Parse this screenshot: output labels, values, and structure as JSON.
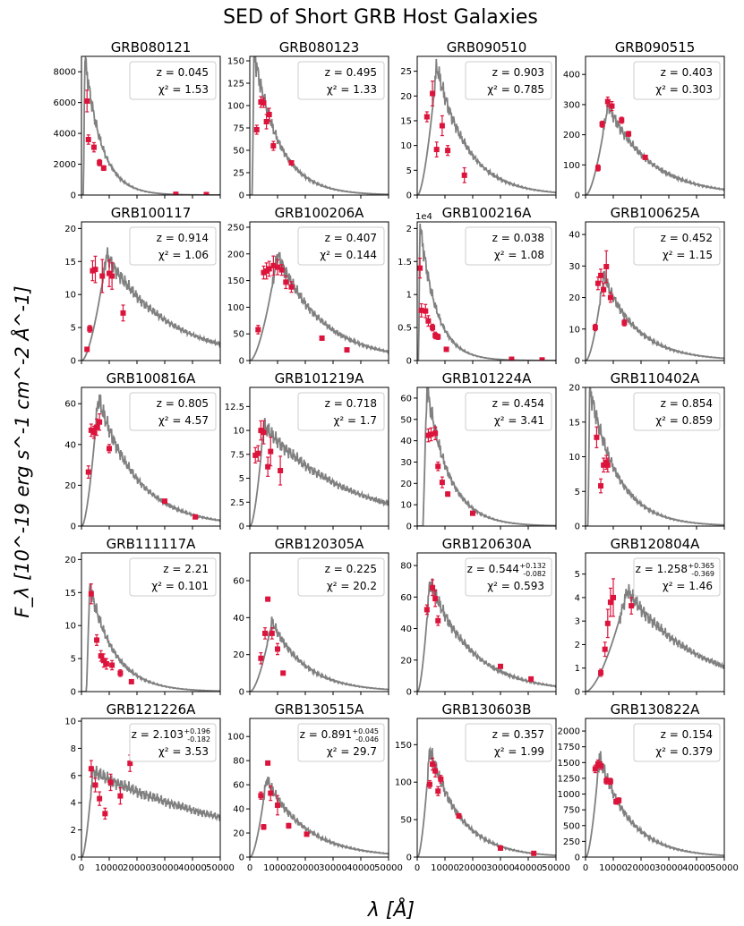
{
  "figure": {
    "title": "SED of Short GRB Host Galaxies",
    "ylabel": "F_λ [10^-19 erg s^-1 cm^-2 Å^-1]",
    "xlabel": "λ [Å]"
  },
  "colors": {
    "model": "#808080",
    "points": "#dc143c",
    "axis": "#000000",
    "legend_edge": "#cccccc"
  },
  "chart_data": [
    {
      "type": "line",
      "title": "GRB080121",
      "z": "0.045",
      "chi2": "1.53",
      "ylim": [
        0,
        9000
      ],
      "yticks": [
        0,
        2000,
        4000,
        6000,
        8000
      ],
      "xlim": [
        0,
        50000
      ],
      "xticks": [],
      "model": {
        "peak": 9000,
        "peak_x": 1200,
        "shape": "decay",
        "decay": 6000
      },
      "points": [
        [
          2000,
          6100,
          700
        ],
        [
          2500,
          3600,
          300
        ],
        [
          4500,
          3100,
          300
        ],
        [
          6500,
          2100,
          200
        ],
        [
          8000,
          1750,
          150
        ],
        [
          34000,
          50,
          0
        ],
        [
          45000,
          30,
          0
        ]
      ]
    },
    {
      "type": "line",
      "title": "GRB080123",
      "z": "0.495",
      "chi2": "1.33",
      "ylim": [
        0,
        155
      ],
      "yticks": [
        0,
        25,
        50,
        75,
        100,
        125,
        150
      ],
      "xlim": [
        0,
        50000
      ],
      "xticks": [],
      "model": {
        "peak": 160,
        "peak_x": 1500,
        "shape": "decay",
        "decay": 9000
      },
      "points": [
        [
          2500,
          73,
          5
        ],
        [
          4000,
          104,
          6
        ],
        [
          5000,
          103,
          5
        ],
        [
          6000,
          82,
          8
        ],
        [
          7000,
          90,
          7
        ],
        [
          8500,
          55,
          5
        ],
        [
          15000,
          36,
          2
        ]
      ]
    },
    {
      "type": "line",
      "title": "GRB090510",
      "z": "0.903",
      "chi2": "0.785",
      "ylim": [
        0,
        28
      ],
      "yticks": [
        0,
        5,
        10,
        15,
        20,
        25
      ],
      "xlim": [
        0,
        50000
      ],
      "xticks": [],
      "model": {
        "peak": 26,
        "peak_x": 7000,
        "shape": "bump",
        "rise": 4000,
        "decay": 11000
      },
      "points": [
        [
          3500,
          15.8,
          1.0
        ],
        [
          5500,
          20.5,
          2.5
        ],
        [
          7000,
          9.2,
          1.5
        ],
        [
          9000,
          14,
          2
        ],
        [
          11000,
          9,
          1
        ],
        [
          17000,
          4,
          1.5
        ]
      ]
    },
    {
      "type": "line",
      "title": "GRB090515",
      "z": "0.403",
      "chi2": "0.303",
      "ylim": [
        0,
        460
      ],
      "yticks": [
        0,
        100,
        200,
        300,
        400
      ],
      "xlim": [
        0,
        50000
      ],
      "xticks": [],
      "model": {
        "peak": 300,
        "peak_x": 8000,
        "shape": "bump",
        "rise": 5000,
        "decay": 15000
      },
      "points": [
        [
          4500,
          90,
          10
        ],
        [
          6000,
          235,
          10
        ],
        [
          8000,
          310,
          15
        ],
        [
          9500,
          295,
          15
        ],
        [
          13000,
          248,
          10
        ],
        [
          15500,
          203,
          8
        ],
        [
          21500,
          125,
          5
        ]
      ]
    },
    {
      "type": "line",
      "title": "GRB100117",
      "z": "0.914",
      "chi2": "1.06",
      "ylim": [
        0,
        21
      ],
      "yticks": [
        0,
        5,
        10,
        15,
        20
      ],
      "xlim": [
        0,
        50000
      ],
      "xticks": [],
      "model": {
        "peak": 16,
        "peak_x": 9000,
        "shape": "bump",
        "rise": 4000,
        "decay": 22000
      },
      "points": [
        [
          2000,
          1.7,
          0.3
        ],
        [
          3000,
          4.8,
          0.5
        ],
        [
          4000,
          13.6,
          1.5
        ],
        [
          5000,
          13.8,
          2
        ],
        [
          7500,
          12.8,
          2.5
        ],
        [
          10000,
          13.2,
          2
        ],
        [
          11000,
          12.8,
          2
        ],
        [
          15000,
          7.2,
          1.2
        ]
      ]
    },
    {
      "type": "line",
      "title": "GRB100206A",
      "z": "0.407",
      "chi2": "0.144",
      "ylim": [
        0,
        260
      ],
      "yticks": [
        0,
        50,
        100,
        150,
        200,
        250
      ],
      "xlim": [
        0,
        50000
      ],
      "xticks": [],
      "model": {
        "peak": 200,
        "peak_x": 10000,
        "shape": "bump",
        "rise": 6000,
        "decay": 16000
      },
      "points": [
        [
          3000,
          58,
          8
        ],
        [
          5000,
          165,
          12
        ],
        [
          6000,
          168,
          15
        ],
        [
          7000,
          172,
          14
        ],
        [
          8500,
          178,
          18
        ],
        [
          10000,
          175,
          14
        ],
        [
          11500,
          170,
          10
        ],
        [
          13000,
          147,
          12
        ],
        [
          15000,
          138,
          10
        ],
        [
          26000,
          42,
          3
        ],
        [
          35000,
          20,
          2
        ]
      ]
    },
    {
      "type": "line",
      "title": "GRB100216A",
      "z": "0.038",
      "chi2": "1.08",
      "ylim": [
        0,
        2.1
      ],
      "yticks": [
        0,
        0.5,
        1.0,
        1.5,
        2.0
      ],
      "offset": "1e4",
      "xlim": [
        0,
        50000
      ],
      "xticks": [],
      "model": {
        "peak": 2.1,
        "peak_x": 900,
        "shape": "decay",
        "decay": 6000
      },
      "points": [
        [
          1000,
          1.4,
          0.15
        ],
        [
          1500,
          0.76,
          0.1
        ],
        [
          3000,
          0.75,
          0.1
        ],
        [
          4000,
          0.6,
          0.08
        ],
        [
          5500,
          0.5,
          0.05
        ],
        [
          6500,
          0.38,
          0.05
        ],
        [
          7500,
          0.36,
          0.04
        ],
        [
          10500,
          0.17,
          0.02
        ],
        [
          34000,
          0.02,
          0
        ],
        [
          45000,
          0.01,
          0
        ]
      ]
    },
    {
      "type": "line",
      "title": "GRB100625A",
      "z": "0.452",
      "chi2": "1.15",
      "ylim": [
        0,
        44
      ],
      "yticks": [
        0,
        10,
        20,
        30,
        40
      ],
      "xlim": [
        0,
        50000
      ],
      "xticks": [],
      "model": {
        "peak": 27,
        "peak_x": 6500,
        "shape": "bump",
        "rise": 4000,
        "decay": 12000
      },
      "points": [
        [
          3500,
          10.5,
          1
        ],
        [
          4500,
          24.5,
          2
        ],
        [
          5500,
          27,
          2
        ],
        [
          6500,
          22.5,
          2
        ],
        [
          7500,
          29.8,
          5
        ],
        [
          9000,
          20,
          1.5
        ],
        [
          14000,
          12,
          1
        ]
      ]
    },
    {
      "type": "line",
      "title": "GRB100816A",
      "z": "0.805",
      "chi2": "4.57",
      "ylim": [
        0,
        68
      ],
      "yticks": [
        0,
        20,
        40,
        60
      ],
      "xlim": [
        0,
        50000
      ],
      "xticks": [],
      "model": {
        "peak": 63,
        "peak_x": 6000,
        "shape": "bump",
        "rise": 3000,
        "decay": 14000
      },
      "points": [
        [
          2500,
          26.5,
          3
        ],
        [
          3500,
          47,
          3
        ],
        [
          4500,
          46,
          3
        ],
        [
          5500,
          48.5,
          4
        ],
        [
          6500,
          51,
          4
        ],
        [
          10000,
          38,
          2
        ],
        [
          30000,
          12.2,
          1
        ],
        [
          41000,
          4.5,
          0.8
        ]
      ]
    },
    {
      "type": "line",
      "title": "GRB101219A",
      "z": "0.718",
      "chi2": "1.7",
      "ylim": [
        0,
        14.5
      ],
      "yticks": [
        0,
        2.5,
        5.0,
        7.5,
        10.0,
        12.5
      ],
      "xlim": [
        0,
        50000
      ],
      "xticks": [],
      "model": {
        "peak": 10.5,
        "peak_x": 5000,
        "shape": "bump",
        "rise": 3000,
        "decay": 30000
      },
      "points": [
        [
          2000,
          7.4,
          0.8
        ],
        [
          3000,
          7.6,
          0.8
        ],
        [
          4000,
          10,
          1
        ],
        [
          5000,
          9.8,
          1.2
        ],
        [
          6500,
          6.2,
          1
        ],
        [
          7500,
          7.8,
          1.5
        ],
        [
          11000,
          5.8,
          1.5
        ]
      ]
    },
    {
      "type": "line",
      "title": "GRB101224A",
      "z": "0.454",
      "chi2": "3.41",
      "ylim": [
        0,
        65
      ],
      "yticks": [
        0,
        10,
        20,
        30,
        40,
        50,
        60
      ],
      "xlim": [
        0,
        50000
      ],
      "xticks": [],
      "model": {
        "peak": 65,
        "peak_x": 3500,
        "shape": "decay",
        "decay": 8000
      },
      "points": [
        [
          4000,
          42.5,
          3
        ],
        [
          5000,
          43,
          3
        ],
        [
          6500,
          43.5,
          3
        ],
        [
          7500,
          28,
          2
        ],
        [
          9000,
          20.5,
          2.5
        ],
        [
          11000,
          15,
          1
        ],
        [
          20000,
          6,
          0.5
        ]
      ]
    },
    {
      "type": "line",
      "title": "GRB110402A",
      "z": "0.854",
      "chi2": "0.859",
      "ylim": [
        0,
        20
      ],
      "yticks": [
        0,
        5,
        10,
        15,
        20
      ],
      "xlim": [
        0,
        50000
      ],
      "xticks": [],
      "model": {
        "peak": 20,
        "peak_x": 1500,
        "shape": "decay",
        "decay": 10000
      },
      "points": [
        [
          4000,
          12.8,
          1.5
        ],
        [
          5500,
          5.8,
          1
        ],
        [
          6500,
          8.8,
          1
        ],
        [
          7500,
          9.2,
          1
        ],
        [
          8000,
          8.8,
          1
        ]
      ]
    },
    {
      "type": "line",
      "title": "GRB111117A",
      "z": "2.21",
      "chi2": "0.101",
      "ylim": [
        0,
        21
      ],
      "yticks": [
        0,
        5,
        10,
        15,
        20
      ],
      "xlim": [
        0,
        50000
      ],
      "xticks": [],
      "model": {
        "peak": 16,
        "peak_x": 3000,
        "shape": "decay",
        "decay": 9000
      },
      "points": [
        [
          3500,
          14.8,
          1.5
        ],
        [
          5500,
          7.8,
          0.8
        ],
        [
          7000,
          5.4,
          0.8
        ],
        [
          8000,
          4.7,
          1
        ],
        [
          9000,
          4.2,
          0.8
        ],
        [
          11000,
          4,
          0.7
        ],
        [
          14000,
          2.8,
          0.5
        ],
        [
          18000,
          1.5,
          0.3
        ]
      ]
    },
    {
      "type": "line",
      "title": "GRB120305A",
      "z": "0.225",
      "chi2": "20.2",
      "ylim": [
        0,
        75
      ],
      "yticks": [
        0,
        20,
        40,
        60
      ],
      "xlim": [
        0,
        50000
      ],
      "xticks": [],
      "model": {
        "peak": 38,
        "peak_x": 8000,
        "shape": "bump",
        "rise": 5000,
        "decay": 12000
      },
      "points": [
        [
          4000,
          18,
          3
        ],
        [
          5500,
          31.5,
          3
        ],
        [
          6500,
          50,
          1
        ],
        [
          8000,
          31.5,
          3
        ],
        [
          10000,
          23,
          3
        ],
        [
          12000,
          10,
          1
        ]
      ]
    },
    {
      "type": "line",
      "title": "GRB120630A",
      "z": "0.544",
      "z_sup": "+0.132",
      "z_sub": "-0.082",
      "chi2": "0.593",
      "ylim": [
        0,
        88
      ],
      "yticks": [
        0,
        20,
        40,
        60,
        80
      ],
      "xlim": [
        0,
        50000
      ],
      "xticks": [],
      "model": {
        "peak": 70,
        "peak_x": 4500,
        "shape": "bump",
        "rise": 3000,
        "decay": 15000
      },
      "points": [
        [
          3500,
          52,
          3
        ],
        [
          5500,
          66,
          5
        ],
        [
          6500,
          59,
          5
        ],
        [
          7500,
          45,
          3
        ],
        [
          30000,
          16,
          1
        ],
        [
          41000,
          8,
          0.6
        ]
      ]
    },
    {
      "type": "line",
      "title": "GRB120804A",
      "z": "1.258",
      "z_sup": "+0.365",
      "z_sub": "-0.369",
      "chi2": "1.46",
      "ylim": [
        0,
        5.9
      ],
      "yticks": [
        0,
        1,
        2,
        3,
        4,
        5
      ],
      "xlim": [
        0,
        50000
      ],
      "xticks": [],
      "model": {
        "peak": 4.3,
        "peak_x": 15000,
        "shape": "bump",
        "rise": 8000,
        "decay": 25000
      },
      "points": [
        [
          5500,
          0.8,
          0.15
        ],
        [
          7000,
          1.8,
          0.3
        ],
        [
          8000,
          2.9,
          0.6
        ],
        [
          9000,
          3.8,
          0.6
        ],
        [
          10000,
          4,
          0.8
        ],
        [
          16500,
          3.65,
          0.35
        ]
      ]
    },
    {
      "type": "line",
      "title": "GRB121226A",
      "z": "2.103",
      "z_sup": "+0.196",
      "z_sub": "-0.182",
      "chi2": "3.53",
      "ylim": [
        0,
        10.2
      ],
      "yticks": [
        0,
        2,
        4,
        6,
        8,
        10
      ],
      "xlim": [
        0,
        50000
      ],
      "xticks": [
        0,
        10000,
        20000,
        30000,
        40000,
        50000
      ],
      "model": {
        "peak": 6.3,
        "peak_x": 4000,
        "shape": "bump",
        "rise": 2000,
        "decay": 60000
      },
      "points": [
        [
          3500,
          6.5,
          0.6
        ],
        [
          5000,
          5.3,
          0.5
        ],
        [
          6500,
          4.3,
          0.5
        ],
        [
          8500,
          3.2,
          0.4
        ],
        [
          10500,
          5.5,
          0.6
        ],
        [
          14000,
          4.5,
          0.6
        ],
        [
          17500,
          6.9,
          0.6
        ]
      ]
    },
    {
      "type": "line",
      "title": "GRB130515A",
      "z": "0.891",
      "z_sup": "+0.045",
      "z_sub": "-0.046",
      "chi2": "29.7",
      "ylim": [
        0,
        115
      ],
      "yticks": [
        0,
        20,
        40,
        60,
        80,
        100
      ],
      "xlim": [
        0,
        50000
      ],
      "xticks": [
        0,
        10000,
        20000,
        30000,
        40000,
        50000
      ],
      "model": {
        "peak": 65,
        "peak_x": 6000,
        "shape": "bump",
        "rise": 3500,
        "decay": 14000
      },
      "points": [
        [
          4000,
          51,
          3
        ],
        [
          5000,
          25,
          2
        ],
        [
          6500,
          78,
          1
        ],
        [
          7500,
          53,
          6
        ],
        [
          10000,
          43,
          8
        ],
        [
          14000,
          26,
          2
        ],
        [
          20500,
          19,
          1.5
        ]
      ]
    },
    {
      "type": "line",
      "title": "GRB130603B",
      "z": "0.357",
      "chi2": "1.99",
      "ylim": [
        0,
        185
      ],
      "yticks": [
        0,
        50,
        100,
        150
      ],
      "xlim": [
        0,
        50000
      ],
      "xticks": [
        0,
        10000,
        20000,
        30000,
        40000,
        50000
      ],
      "model": {
        "peak": 145,
        "peak_x": 4500,
        "shape": "bump",
        "rise": 2000,
        "decay": 11000
      },
      "points": [
        [
          4500,
          97,
          5
        ],
        [
          5500,
          124,
          8
        ],
        [
          6500,
          115,
          8
        ],
        [
          7500,
          88,
          6
        ],
        [
          8500,
          104,
          5
        ],
        [
          15000,
          55,
          3
        ],
        [
          30000,
          12,
          1
        ],
        [
          42000,
          5,
          0.5
        ]
      ]
    },
    {
      "type": "line",
      "title": "GRB130822A",
      "z": "0.154",
      "chi2": "0.379",
      "ylim": [
        0,
        2200
      ],
      "yticks": [
        0,
        250,
        500,
        750,
        1000,
        1250,
        1500,
        1750,
        2000
      ],
      "xlim": [
        0,
        50000
      ],
      "xticks": [
        0,
        10000,
        20000,
        30000,
        40000,
        50000
      ],
      "model": {
        "peak": 1600,
        "peak_x": 5000,
        "shape": "bump",
        "rise": 2000,
        "decay": 11000
      },
      "points": [
        [
          3500,
          1400,
          60
        ],
        [
          4500,
          1480,
          60
        ],
        [
          5500,
          1450,
          60
        ],
        [
          7500,
          1210,
          50
        ],
        [
          9000,
          1200,
          50
        ],
        [
          11000,
          880,
          40
        ],
        [
          12000,
          900,
          40
        ]
      ]
    }
  ]
}
